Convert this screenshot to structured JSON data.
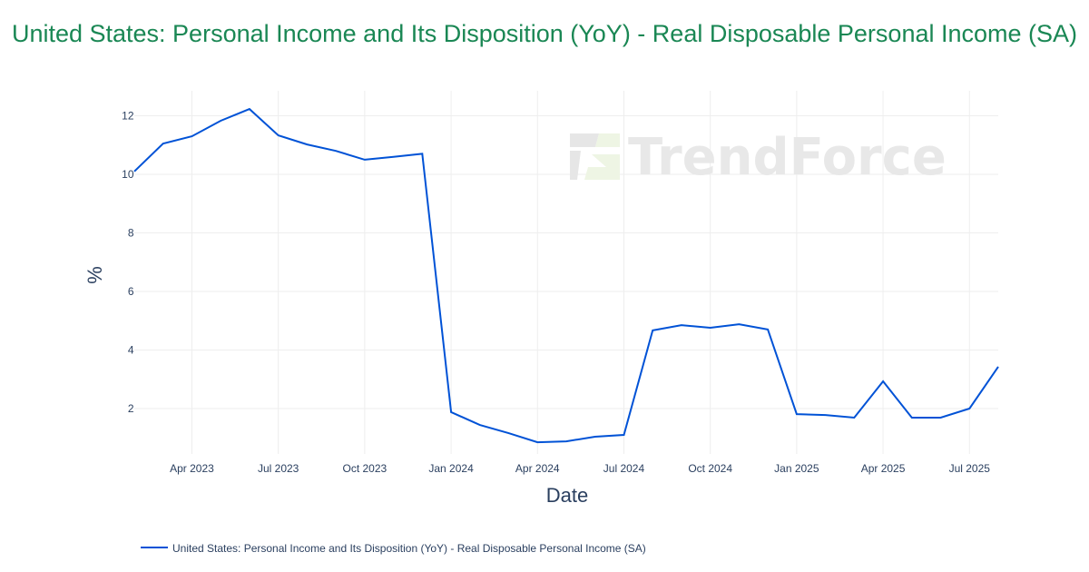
{
  "title": "United States: Personal Income and Its Disposition (YoY) - Real Disposable Personal Income (SA)",
  "watermark": "TrendForce",
  "chart_data": {
    "type": "line",
    "title": "United States: Personal Income and Its Disposition (YoY) - Real Disposable Personal Income (SA)",
    "xlabel": "Date",
    "ylabel": "%",
    "x": [
      "2023-02",
      "2023-03",
      "2023-04",
      "2023-05",
      "2023-06",
      "2023-07",
      "2023-08",
      "2023-09",
      "2023-10",
      "2023-11",
      "2023-12",
      "2024-01",
      "2024-02",
      "2024-03",
      "2024-04",
      "2024-05",
      "2024-06",
      "2024-07",
      "2024-08",
      "2024-09",
      "2024-10",
      "2024-11",
      "2024-12",
      "2025-01",
      "2025-02",
      "2025-03",
      "2025-04",
      "2025-05",
      "2025-06",
      "2025-07",
      "2025-08"
    ],
    "series": [
      {
        "name": "United States: Personal Income and Its Disposition (YoY) - Real Disposable Personal Income (SA)",
        "color": "#0052d6",
        "values": [
          10.1,
          11.05,
          11.3,
          11.83,
          12.23,
          11.33,
          11.02,
          10.8,
          10.5,
          10.6,
          10.7,
          1.88,
          1.44,
          1.16,
          0.85,
          0.88,
          1.04,
          1.1,
          4.67,
          4.85,
          4.76,
          4.88,
          4.7,
          1.81,
          1.78,
          1.69,
          2.93,
          1.69,
          1.69,
          2.0,
          3.43
        ]
      }
    ],
    "x_ticks": [
      {
        "date": "2023-04",
        "label": "Apr 2023"
      },
      {
        "date": "2023-07",
        "label": "Jul 2023"
      },
      {
        "date": "2023-10",
        "label": "Oct 2023"
      },
      {
        "date": "2024-01",
        "label": "Jan 2024"
      },
      {
        "date": "2024-04",
        "label": "Apr 2024"
      },
      {
        "date": "2024-07",
        "label": "Jul 2024"
      },
      {
        "date": "2024-10",
        "label": "Oct 2024"
      },
      {
        "date": "2025-01",
        "label": "Jan 2025"
      },
      {
        "date": "2025-04",
        "label": "Apr 2025"
      },
      {
        "date": "2025-07",
        "label": "Jul 2025"
      }
    ],
    "y_ticks": [
      2,
      4,
      6,
      8,
      10,
      12
    ],
    "xlim": [
      "2023-02",
      "2025-08"
    ],
    "ylim": [
      0.3,
      12.9
    ],
    "grid": true,
    "legend": "bottom-left"
  }
}
